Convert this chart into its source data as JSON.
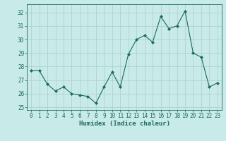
{
  "x": [
    0,
    1,
    2,
    3,
    4,
    5,
    6,
    7,
    8,
    9,
    10,
    11,
    12,
    13,
    14,
    15,
    16,
    17,
    18,
    19,
    20,
    21,
    22,
    23
  ],
  "y": [
    27.7,
    27.7,
    26.7,
    26.2,
    26.5,
    26.0,
    25.9,
    25.8,
    25.3,
    26.5,
    27.6,
    26.5,
    28.9,
    30.0,
    30.3,
    29.8,
    31.7,
    30.8,
    31.0,
    32.1,
    29.0,
    28.7,
    26.5,
    26.8
  ],
  "line_color": "#1a6b5a",
  "marker": "D",
  "marker_size": 2,
  "bg_color": "#c8eae8",
  "grid_color": "#aacccc",
  "xlabel": "Humidex (Indice chaleur)",
  "ylim": [
    24.8,
    32.6
  ],
  "xlim": [
    -0.5,
    23.5
  ],
  "yticks": [
    25,
    26,
    27,
    28,
    29,
    30,
    31,
    32
  ],
  "xticks": [
    0,
    1,
    2,
    3,
    4,
    5,
    6,
    7,
    8,
    9,
    10,
    11,
    12,
    13,
    14,
    15,
    16,
    17,
    18,
    19,
    20,
    21,
    22,
    23
  ],
  "label_fontsize": 6.5,
  "tick_fontsize": 5.5
}
